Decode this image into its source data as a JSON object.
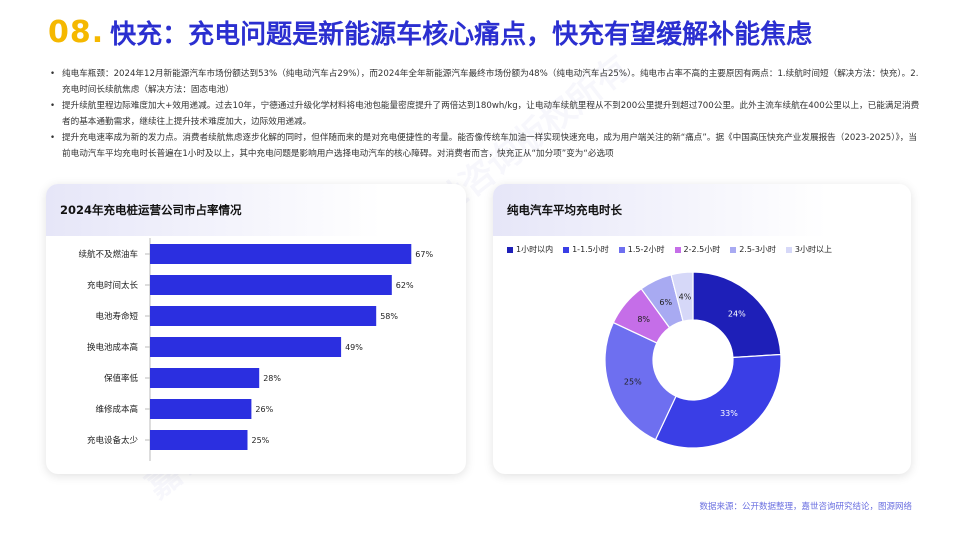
{
  "title": {
    "number": "08.",
    "text": "快充：充电问题是新能源车核心痛点，快充有望缓解补能焦虑"
  },
  "bullets": [
    "纯电车瓶颈：2024年12月新能源汽车市场份额达到53%（纯电动汽车占29%），而2024年全年新能源汽车最终市场份额为48%（纯电动汽车占25%）。纯电市占率不高的主要原因有两点：1.续航时间短（解决方法：快充）。2.充电时间长续航焦虑（解决方法：固态电池）",
    "提升续航里程边际难度加大+效用递减。过去10年，宁德通过升级化学材料将电池包能量密度提升了两倍达到180wh/kg，让电动车续航里程从不到200公里提升到超过700公里。此外主流车续航在400公里以上，已能满足消费者的基本通勤需求，继续往上提升技术难度加大，边际效用递减。",
    "提升充电速率成为新的发力点。消费者续航焦虑逐步化解的同时，但伴随而来的是对充电便捷性的考量。能否像传统车加油一样实现快速充电，成为用户端关注的新“痛点”。据《中国高压快充产业发展报告（2023-2025）》，当前电动汽车平均充电时长普遍在1小时及以上，其中充电问题是影响用户选择电动汽车的核心障碍。对消费者而言，快充正从“加分项”变为“必选项"
  ],
  "left_chart_title": "2024年充电桩运营公司市占率情况",
  "right_chart_title": "纯电汽车平均充电时长",
  "source": "数据来源：公开数据整理，嘉世咨询研究结论，图源网络",
  "watermark": "嘉世咨询版权所有",
  "colors": {
    "accent_blue": "#2b2fd0",
    "accent_yellow": "#f5b800",
    "bar": "#2b2fe0"
  },
  "chart_data": [
    {
      "type": "bar",
      "orientation": "horizontal",
      "title": "2024年充电桩运营公司市占率情况",
      "categories": [
        "续航不及燃油车",
        "充电时间太长",
        "电池寿命短",
        "换电池成本高",
        "保值率低",
        "维修成本高",
        "充电设备太少"
      ],
      "values": [
        67,
        62,
        58,
        49,
        28,
        26,
        25
      ],
      "value_labels": [
        "67%",
        "62%",
        "58%",
        "49%",
        "28%",
        "26%",
        "25%"
      ],
      "xlim": [
        0,
        80
      ],
      "grid": false,
      "color": "#2b2fe0"
    },
    {
      "type": "pie",
      "donut": true,
      "title": "纯电汽车平均充电时长",
      "legend_position": "top",
      "categories": [
        "1小时以内",
        "1-1.5小时",
        "1.5-2小时",
        "2-2.5小时",
        "2.5-3小时",
        "3小时以上"
      ],
      "values": [
        24,
        33,
        25,
        8,
        6,
        4
      ],
      "labels": [
        "24%",
        "33%",
        "25%",
        "8%",
        "6%",
        "4%"
      ],
      "colors": [
        "#1e1fb8",
        "#3a3ee6",
        "#6e6ff0",
        "#c56ee8",
        "#a8aaf2",
        "#d6d8f8"
      ]
    }
  ]
}
